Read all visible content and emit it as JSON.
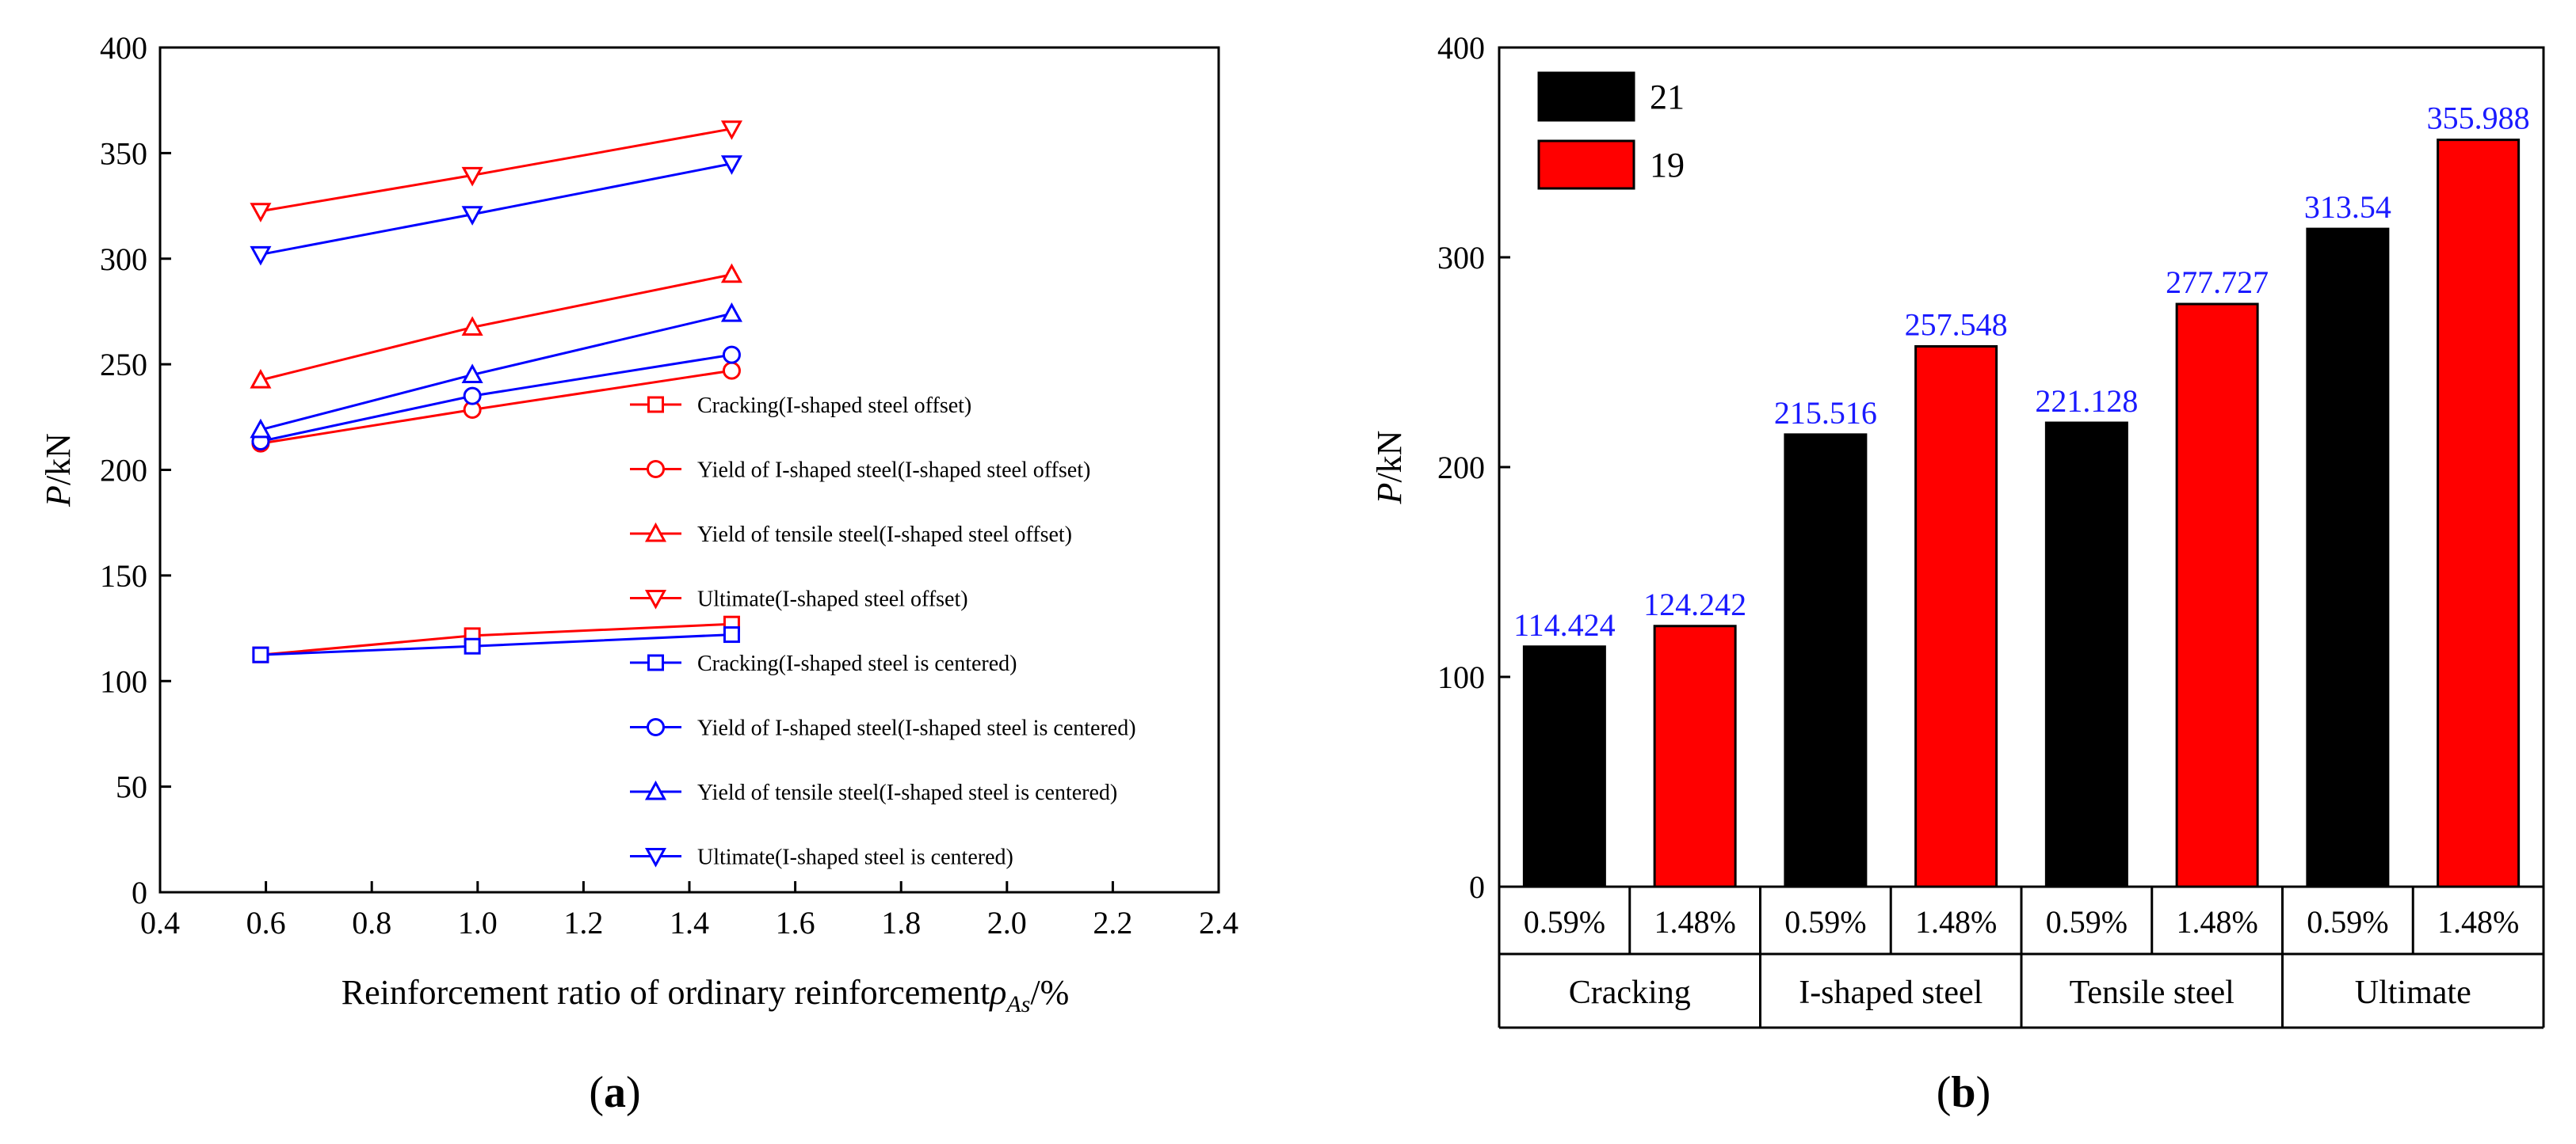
{
  "colors": {
    "red": "#ff0000",
    "blue": "#0000ff",
    "black": "#000000",
    "value_label": "#1a1aff"
  },
  "panel_labels": {
    "a": "a",
    "b": "b"
  },
  "chart_data": [
    {
      "type": "line",
      "panel": "a",
      "title": "",
      "xlabel_prefix": "Reinforcement ratio of ordinary reinforcement",
      "xlabel_symbol": "ρ",
      "xlabel_subscript": "As",
      "xlabel_suffix": "/%",
      "ylabel_italic": "P",
      "ylabel_rest": "/kN",
      "xlim": [
        0.4,
        2.4
      ],
      "ylim": [
        0,
        400
      ],
      "xticks": [
        "0.4",
        "0.6",
        "0.8",
        "1.0",
        "1.2",
        "1.4",
        "1.6",
        "1.8",
        "2.0",
        "2.2",
        "2.4"
      ],
      "yticks": [
        "0",
        "50",
        "100",
        "150",
        "200",
        "250",
        "300",
        "350",
        "400"
      ],
      "legend_position": "lower-right",
      "series": [
        {
          "name": "Cracking(I-shaped steel offset)",
          "color": "#ff0000",
          "marker": "square",
          "x": [
            0.59,
            0.99,
            1.48
          ],
          "values": [
            112.4,
            121.5,
            127.0
          ]
        },
        {
          "name": "Yield of I-shaped steel(I-shaped steel offset)",
          "color": "#ff0000",
          "marker": "circle",
          "x": [
            0.59,
            0.99,
            1.48
          ],
          "values": [
            212.5,
            228.5,
            247.0
          ]
        },
        {
          "name": "Yield of tensile steel(I-shaped steel offset)",
          "color": "#ff0000",
          "marker": "triangle-up",
          "x": [
            0.59,
            0.99,
            1.48
          ],
          "values": [
            242.5,
            267.5,
            292.5
          ]
        },
        {
          "name": "Ultimate(I-shaped steel offset)",
          "color": "#ff0000",
          "marker": "triangle-down",
          "x": [
            0.59,
            0.99,
            1.48
          ],
          "values": [
            322.5,
            339.5,
            361.5
          ]
        },
        {
          "name": "Cracking(I-shaped steel is centered)",
          "color": "#0000ff",
          "marker": "square",
          "x": [
            0.59,
            0.99,
            1.48
          ],
          "values": [
            112.4,
            116.5,
            122.0
          ]
        },
        {
          "name": "Yield of I-shaped steel(I-shaped steel is centered)",
          "color": "#0000ff",
          "marker": "circle",
          "x": [
            0.59,
            0.99,
            1.48
          ],
          "values": [
            213.5,
            235.0,
            254.5
          ]
        },
        {
          "name": "Yield of tensile steel(I-shaped steel is centered)",
          "color": "#0000ff",
          "marker": "triangle-up",
          "x": [
            0.59,
            0.99,
            1.48
          ],
          "values": [
            219.0,
            245.0,
            274.0
          ]
        },
        {
          "name": "Ultimate(I-shaped steel is centered)",
          "color": "#0000ff",
          "marker": "triangle-down",
          "x": [
            0.59,
            0.99,
            1.48
          ],
          "values": [
            302.0,
            321.0,
            345.0
          ]
        }
      ]
    },
    {
      "type": "bar",
      "panel": "b",
      "title": "",
      "ylabel_italic": "P",
      "ylabel_rest": "/kN",
      "ylim": [
        0,
        400
      ],
      "yticks": [
        "0",
        "100",
        "200",
        "300",
        "400"
      ],
      "legend_position": "top-left",
      "groups": [
        "Cracking",
        "I-shaped steel",
        "Tensile steel",
        "Ultimate"
      ],
      "categories": [
        "0.59%",
        "1.48%",
        "0.59%",
        "1.48%",
        "0.59%",
        "1.48%",
        "0.59%",
        "1.48%"
      ],
      "series": [
        {
          "name": "21",
          "color": "#000000"
        },
        {
          "name": "19",
          "color": "#ff0000"
        }
      ],
      "bar_series_index": [
        0,
        1,
        0,
        1,
        0,
        1,
        0,
        1
      ],
      "values": [
        114.424,
        124.242,
        215.516,
        257.548,
        221.128,
        277.727,
        313.54,
        355.988
      ],
      "value_labels": [
        "114.424",
        "124.242",
        "215.516",
        "257.548",
        "221.128",
        "277.727",
        "313.54",
        "355.988"
      ]
    }
  ]
}
